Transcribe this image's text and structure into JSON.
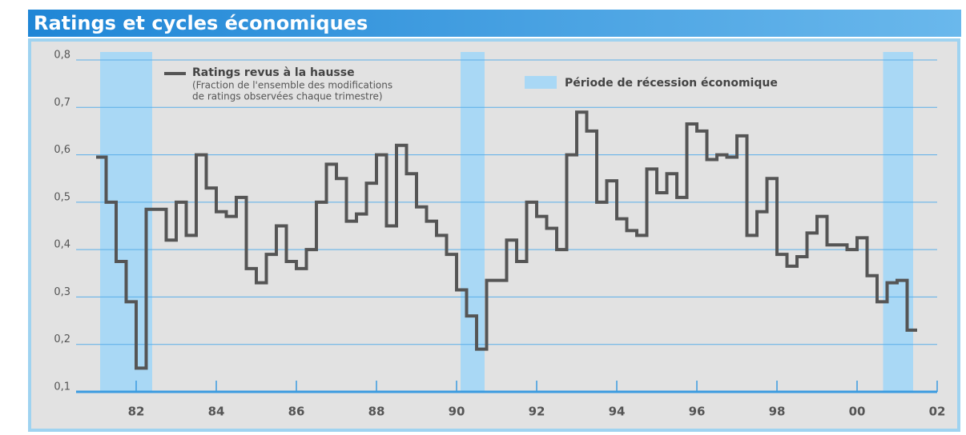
{
  "chart_data": {
    "type": "step",
    "title": "Ratings et cycles économiques",
    "x": [
      1981.5,
      1981.75,
      1982.0,
      1982.25,
      1982.5,
      1982.75,
      1983.25,
      1983.5,
      1983.75,
      1984.0,
      1984.25,
      1984.5,
      1984.75,
      1985.0,
      1985.25,
      1985.5,
      1985.75,
      1986.0,
      1986.25,
      1986.5,
      1986.75,
      1987.0,
      1987.25,
      1987.5,
      1987.75,
      1988.0,
      1988.25,
      1988.5,
      1988.75,
      1989.0,
      1989.25,
      1989.5,
      1989.75,
      1990.0,
      1990.25,
      1990.5,
      1990.75,
      1991.0,
      1991.25,
      1991.75,
      1992.0,
      1992.25,
      1992.5,
      1992.75,
      1993.0,
      1993.25,
      1993.5,
      1993.75,
      1994.0,
      1994.25,
      1994.5,
      1994.75,
      1995.0,
      1995.25,
      1995.5,
      1995.75,
      1996.0,
      1996.25,
      1996.5,
      1996.75,
      1997.0,
      1997.25,
      1997.5,
      1997.75,
      1998.0,
      1998.25,
      1998.5,
      1998.75,
      1999.0,
      1999.25,
      1999.5,
      1999.75,
      2000.25,
      2000.5,
      2000.75,
      2001.0,
      2001.25,
      2001.5,
      2001.75
    ],
    "series": [
      {
        "name": "Ratings revus à la hausse",
        "color": "#555555",
        "values": [
          0.595,
          0.5,
          0.375,
          0.29,
          0.15,
          0.485,
          0.42,
          0.5,
          0.43,
          0.6,
          0.53,
          0.48,
          0.47,
          0.51,
          0.36,
          0.33,
          0.39,
          0.45,
          0.375,
          0.36,
          0.4,
          0.5,
          0.58,
          0.55,
          0.46,
          0.475,
          0.54,
          0.6,
          0.45,
          0.62,
          0.56,
          0.49,
          0.46,
          0.43,
          0.39,
          0.315,
          0.26,
          0.19,
          0.335,
          0.42,
          0.375,
          0.5,
          0.47,
          0.445,
          0.4,
          0.6,
          0.69,
          0.65,
          0.5,
          0.545,
          0.465,
          0.44,
          0.43,
          0.57,
          0.52,
          0.56,
          0.51,
          0.665,
          0.65,
          0.59,
          0.6,
          0.595,
          0.64,
          0.43,
          0.48,
          0.55,
          0.39,
          0.365,
          0.385,
          0.435,
          0.47,
          0.41,
          0.4,
          0.425,
          0.345,
          0.29,
          0.33,
          0.335,
          0.23
        ]
      }
    ],
    "legend_note": [
      "(Fraction de l'ensemble des modifications",
      "de ratings observées chaque trimestre)"
    ],
    "shaded": {
      "name": "Période de récession économique",
      "color": "#a9d8f5",
      "ranges": [
        [
          1981.6,
          1982.9
        ],
        [
          1990.6,
          1991.2
        ],
        [
          2001.15,
          2001.9
        ]
      ]
    },
    "xlim": [
      1981,
      2002.5
    ],
    "xticks": [
      {
        "value": 1982.5,
        "label": "82"
      },
      {
        "value": 1984.5,
        "label": "84"
      },
      {
        "value": 1986.5,
        "label": "86"
      },
      {
        "value": 1988.5,
        "label": "88"
      },
      {
        "value": 1990.5,
        "label": "90"
      },
      {
        "value": 1992.5,
        "label": "92"
      },
      {
        "value": 1994.5,
        "label": "94"
      },
      {
        "value": 1996.5,
        "label": "96"
      },
      {
        "value": 1998.5,
        "label": "98"
      },
      {
        "value": 2000.5,
        "label": "00"
      },
      {
        "value": 2002.5,
        "label": "02"
      }
    ],
    "ylim": [
      0.1,
      0.8
    ],
    "yticks": [
      {
        "value": 0.1,
        "label": "0,1"
      },
      {
        "value": 0.2,
        "label": "0,2"
      },
      {
        "value": 0.3,
        "label": "0,3"
      },
      {
        "value": 0.4,
        "label": "0,4"
      },
      {
        "value": 0.5,
        "label": "0,5"
      },
      {
        "value": 0.6,
        "label": "0,6"
      },
      {
        "value": 0.7,
        "label": "0,7"
      },
      {
        "value": 0.8,
        "label": "0,8"
      }
    ],
    "grid": true,
    "grid_color": "#5aaee8"
  }
}
